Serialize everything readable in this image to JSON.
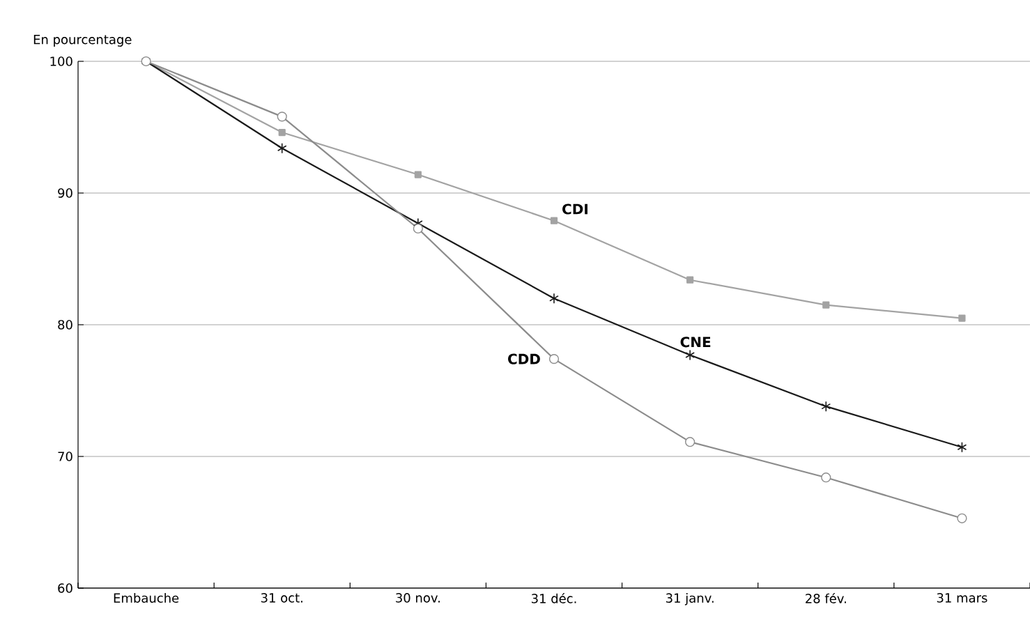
{
  "chart_data": {
    "type": "line",
    "ylabel": "En pourcentage",
    "categories": [
      "Embauche",
      "31 oct.",
      "30 nov.",
      "31 déc.",
      "31 janv.",
      "28 fév.",
      "31 mars"
    ],
    "series": [
      {
        "name": "CDI",
        "color": "#a3a3a3",
        "marker": "square",
        "values": [
          100,
          94.6,
          91.4,
          87.9,
          83.4,
          81.5,
          80.5
        ]
      },
      {
        "name": "CNE",
        "color": "#1a1a1a",
        "marker": "cross",
        "values": [
          100,
          93.4,
          87.7,
          82.0,
          77.7,
          73.8,
          70.7
        ]
      },
      {
        "name": "CDD",
        "color": "#8c8c8c",
        "marker": "circle",
        "values": [
          100,
          95.8,
          87.3,
          77.4,
          71.1,
          68.4,
          65.3
        ]
      }
    ],
    "ylim": [
      60,
      100
    ],
    "yticks": [
      60,
      70,
      80,
      90,
      100
    ],
    "grid": "y",
    "line_style": "solid"
  }
}
